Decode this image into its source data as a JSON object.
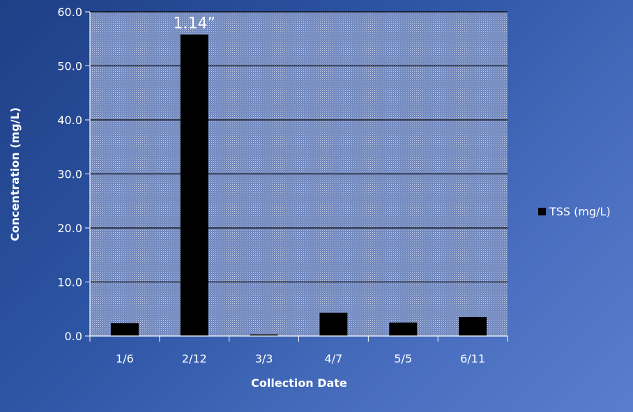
{
  "chart_data": {
    "type": "bar",
    "categories": [
      "1/6",
      "2/12",
      "3/3",
      "4/7",
      "5/5",
      "6/11"
    ],
    "series": [
      {
        "name": "TSS (mg/L)",
        "values": [
          2.4,
          55.8,
          0.3,
          4.3,
          2.5,
          3.5
        ],
        "color": "#000000"
      }
    ],
    "ylabel": "Concentration (mg/L)",
    "xlabel": "Collection Date",
    "ylim": [
      0,
      60
    ],
    "yticks": [
      0,
      10,
      20,
      30,
      40,
      50,
      60
    ],
    "ytick_labels": [
      "0.0",
      "10.0",
      "20.0",
      "30.0",
      "40.0",
      "50.0",
      "60.0"
    ],
    "grid": true,
    "legend": "right",
    "annotations": [
      {
        "text": "1.14”",
        "category": "2/12"
      }
    ]
  }
}
